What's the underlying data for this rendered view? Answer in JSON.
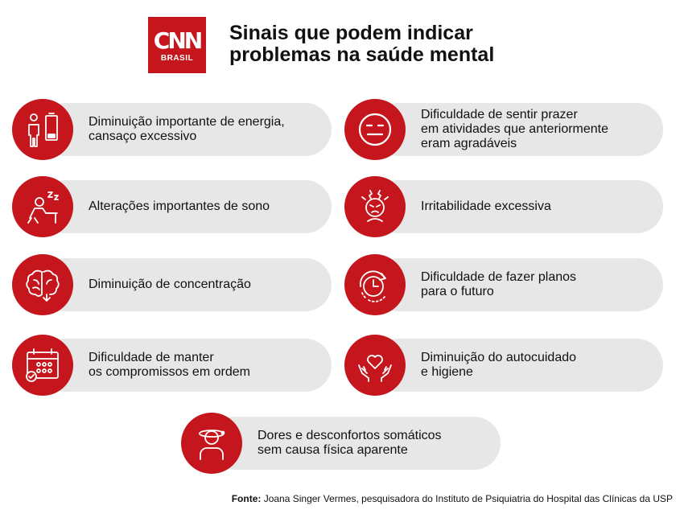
{
  "logo": {
    "main": "CNN",
    "sub": "BRASIL"
  },
  "title": "Sinais que podem indicar\nproblemas na saúde mental",
  "items": [
    {
      "label": "Diminuição importante de energia,\ncansaço excessivo",
      "icon": "low-energy-icon"
    },
    {
      "label": "Dificuldade de sentir prazer\nem atividades que anteriormente\neram agradáveis",
      "icon": "neutral-face-icon"
    },
    {
      "label": "Alterações importantes de sono",
      "icon": "sleep-icon"
    },
    {
      "label": "Irritabilidade excessiva",
      "icon": "irritated-head-icon"
    },
    {
      "label": "Diminuição de concentração",
      "icon": "brain-icon"
    },
    {
      "label": "Dificuldade de fazer planos\npara o futuro",
      "icon": "clock-arrow-icon"
    },
    {
      "label": "Dificuldade de manter\nos compromissos em ordem",
      "icon": "calendar-icon"
    },
    {
      "label": "Diminuição do autocuidado\ne higiene",
      "icon": "heart-hands-icon"
    },
    {
      "label": "Dores e desconfortos somáticos\nsem causa física aparente",
      "icon": "dizzy-person-icon"
    }
  ],
  "footer": {
    "prefix": "Fonte:",
    "text": " Joana Singer Vermes, pesquisadora do Instituto de Psiquiatria do Hospital das Clínicas da USP"
  },
  "colors": {
    "accent": "#c4161c",
    "pill": "#e7e7e7",
    "icon_stroke": "#ffffff"
  }
}
